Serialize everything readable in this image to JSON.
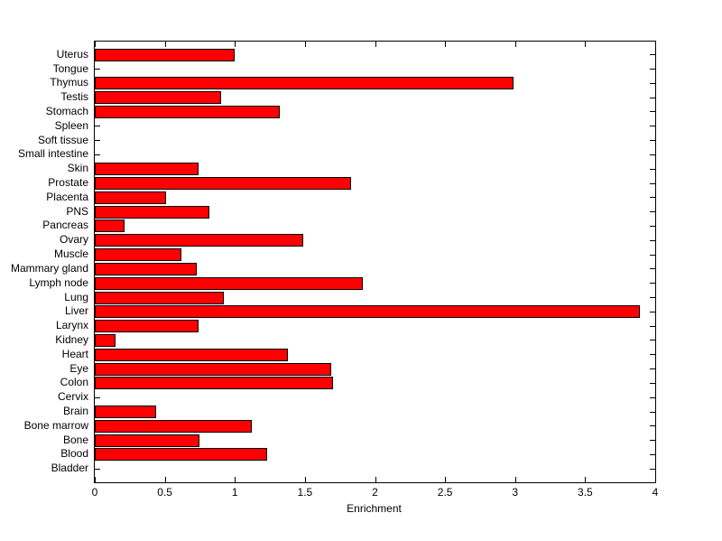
{
  "figure": {
    "background": "#ffffff",
    "axis_color": "#000000",
    "bar_fill": "#ff0000",
    "bar_edge": "#000000",
    "text_color": "#000000"
  },
  "chart_data": {
    "type": "bar",
    "orientation": "horizontal",
    "title": "",
    "xlabel": "Enrichment",
    "ylabel": "",
    "xlim": [
      0,
      4
    ],
    "x_tick_labels": [
      "0",
      "0.5",
      "1",
      "1.5",
      "2",
      "2.5",
      "3",
      "3.5",
      "4"
    ],
    "grid": false,
    "legend": "none",
    "categories": [
      "Uterus",
      "Tongue",
      "Thymus",
      "Testis",
      "Stomach",
      "Spleen",
      "Soft tissue",
      "Small intestine",
      "Skin",
      "Prostate",
      "Placenta",
      "PNS",
      "Pancreas",
      "Ovary",
      "Muscle",
      "Mammary gland",
      "Lymph node",
      "Lung",
      "Liver",
      "Larynx",
      "Kidney",
      "Heart",
      "Eye",
      "Colon",
      "Cervix",
      "Brain",
      "Bone marrow",
      "Bone",
      "Blood",
      "Bladder"
    ],
    "values": [
      1.0,
      0,
      2.99,
      0.9,
      1.32,
      0,
      0,
      0,
      0.74,
      1.83,
      0.51,
      0.82,
      0.21,
      1.49,
      0.62,
      0.73,
      1.91,
      0.92,
      3.89,
      0.74,
      0.15,
      1.38,
      1.69,
      1.7,
      0,
      0.44,
      1.12,
      0.75,
      1.23,
      0
    ]
  }
}
